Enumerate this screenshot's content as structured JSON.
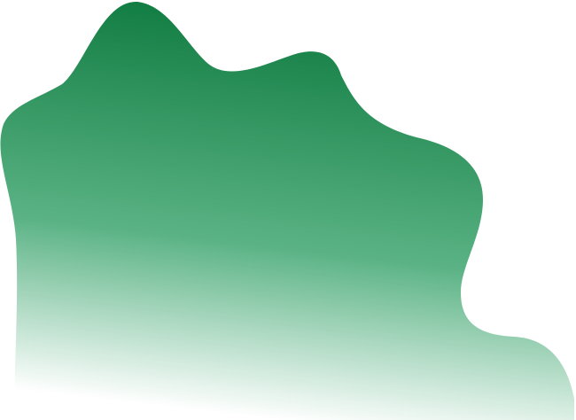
{
  "colors": {
    "background": "#ffffff",
    "gradient_top": "#107c41",
    "gradient_mid": "#5bb385",
    "gradient_bottom": "#ffffff"
  }
}
